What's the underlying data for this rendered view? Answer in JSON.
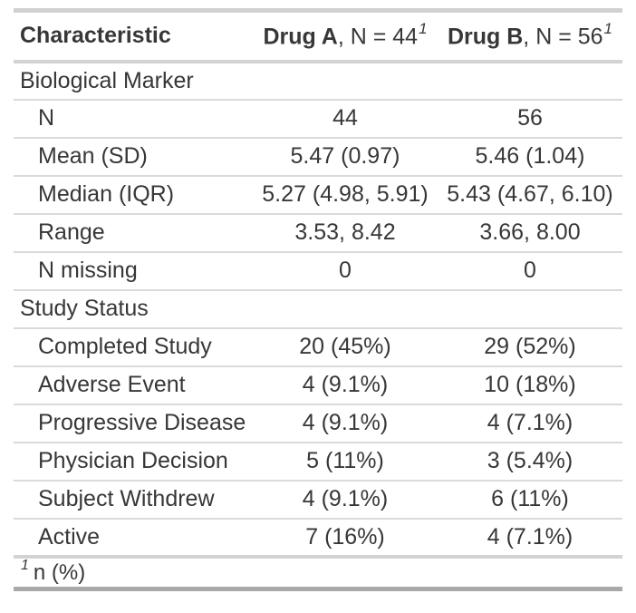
{
  "colors": {
    "text": "#373737",
    "border_top": "#d1d1d1",
    "border_medium": "#d3d3d3",
    "border_light": "#dadada",
    "border_bottom": "#a9a9a9",
    "background": "#ffffff"
  },
  "chart_data": {
    "type": "table",
    "header": {
      "characteristic": "Characteristic",
      "columns": [
        {
          "name": "Drug A",
          "rest": ", N = 44",
          "sup": "1"
        },
        {
          "name": "Drug B",
          "rest": ", N = 56",
          "sup": "1"
        }
      ]
    },
    "rows": [
      {
        "type": "section",
        "label": "Biological Marker"
      },
      {
        "type": "item",
        "label": "N",
        "a": "44",
        "b": "56"
      },
      {
        "type": "item",
        "label": "Mean (SD)",
        "a": "5.47 (0.97)",
        "b": "5.46 (1.04)"
      },
      {
        "type": "item",
        "label": "Median (IQR)",
        "a": "5.27 (4.98, 5.91)",
        "b": "5.43 (4.67, 6.10)"
      },
      {
        "type": "item",
        "label": "Range",
        "a": "3.53, 8.42",
        "b": "3.66, 8.00"
      },
      {
        "type": "item",
        "label": "N missing",
        "a": "0",
        "b": "0"
      },
      {
        "type": "section",
        "label": "Study Status"
      },
      {
        "type": "item",
        "label": "Completed Study",
        "a": "20 (45%)",
        "b": "29 (52%)"
      },
      {
        "type": "item",
        "label": "Adverse Event",
        "a": "4 (9.1%)",
        "b": "10 (18%)"
      },
      {
        "type": "item",
        "label": "Progressive Disease",
        "a": "4 (9.1%)",
        "b": "4 (7.1%)"
      },
      {
        "type": "item",
        "label": "Physician Decision",
        "a": "5 (11%)",
        "b": "3 (5.4%)"
      },
      {
        "type": "item",
        "label": "Subject Withdrew",
        "a": "4 (9.1%)",
        "b": "6 (11%)"
      },
      {
        "type": "item",
        "label": "Active",
        "a": "7 (16%)",
        "b": "4 (7.1%)"
      }
    ],
    "footnote": {
      "sup": "1",
      "text": "n (%)"
    }
  }
}
